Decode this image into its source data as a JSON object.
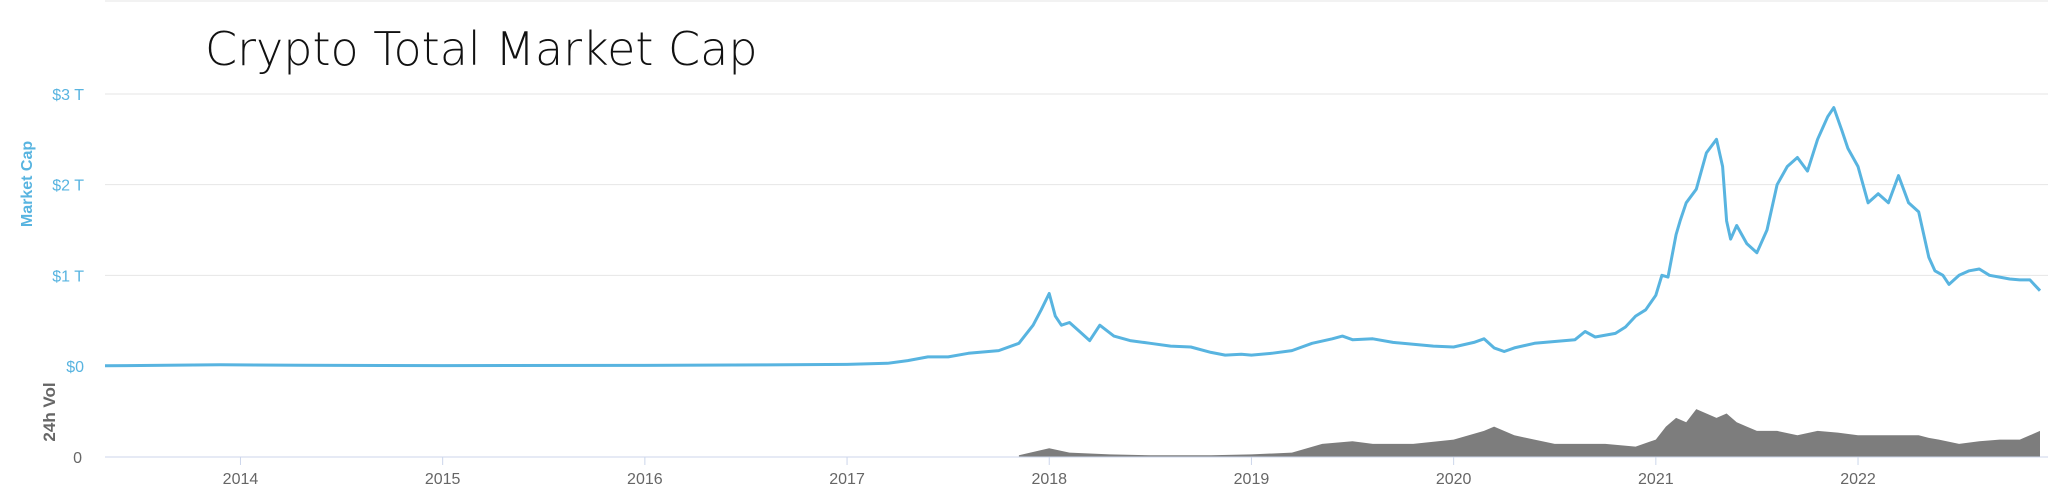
{
  "chart_data": {
    "type": "line",
    "title": "Crypto Total Market Cap",
    "ylabel": "Market Cap",
    "y2label": "24h Vol",
    "ylim": [
      0,
      3
    ],
    "y_unit": "T USD",
    "y_ticks": [
      {
        "value": 0,
        "label": "$0"
      },
      {
        "value": 1,
        "label": "$1 T"
      },
      {
        "value": 2,
        "label": "$2 T"
      },
      {
        "value": 3,
        "label": "$3 T"
      }
    ],
    "vol_ticks": [
      {
        "value": 0,
        "label": "0"
      }
    ],
    "xlim": [
      2013.33,
      2022.9
    ],
    "x_ticks": [
      {
        "value": 2014,
        "label": "2014"
      },
      {
        "value": 2015,
        "label": "2015"
      },
      {
        "value": 2016,
        "label": "2016"
      },
      {
        "value": 2017,
        "label": "2017"
      },
      {
        "value": 2018,
        "label": "2018"
      },
      {
        "value": 2019,
        "label": "2019"
      },
      {
        "value": 2020,
        "label": "2020"
      },
      {
        "value": 2021,
        "label": "2021"
      },
      {
        "value": 2022,
        "label": "2022"
      }
    ],
    "grid": true,
    "legend": "none",
    "series": [
      {
        "color": "#58b4e0",
        "x": [
          2013.33,
          2013.9,
          2014.3,
          2015.0,
          2016.0,
          2016.6,
          2017.0,
          2017.2,
          2017.3,
          2017.4,
          2017.5,
          2017.6,
          2017.65,
          2017.75,
          2017.85,
          2017.92,
          2017.96,
          2018.0,
          2018.03,
          2018.06,
          2018.1,
          2018.15,
          2018.2,
          2018.25,
          2018.32,
          2018.4,
          2018.5,
          2018.6,
          2018.7,
          2018.8,
          2018.87,
          2018.95,
          2019.0,
          2019.1,
          2019.2,
          2019.3,
          2019.4,
          2019.45,
          2019.5,
          2019.6,
          2019.7,
          2019.8,
          2019.9,
          2020.0,
          2020.1,
          2020.15,
          2020.2,
          2020.25,
          2020.3,
          2020.4,
          2020.5,
          2020.6,
          2020.65,
          2020.7,
          2020.8,
          2020.85,
          2020.9,
          2020.95,
          2021.0,
          2021.03,
          2021.06,
          2021.1,
          2021.12,
          2021.15,
          2021.2,
          2021.25,
          2021.3,
          2021.33,
          2021.35,
          2021.37,
          2021.4,
          2021.45,
          2021.5,
          2021.55,
          2021.6,
          2021.65,
          2021.7,
          2021.75,
          2021.8,
          2021.85,
          2021.88,
          2021.92,
          2021.95,
          2022.0,
          2022.05,
          2022.1,
          2022.15,
          2022.2,
          2022.25,
          2022.3,
          2022.35,
          2022.38,
          2022.42,
          2022.45,
          2022.5,
          2022.55,
          2022.6,
          2022.65,
          2022.7,
          2022.75,
          2022.8,
          2022.85,
          2022.9
        ],
        "y": [
          0.002,
          0.013,
          0.008,
          0.004,
          0.007,
          0.012,
          0.018,
          0.03,
          0.06,
          0.1,
          0.1,
          0.14,
          0.15,
          0.17,
          0.25,
          0.45,
          0.62,
          0.8,
          0.55,
          0.45,
          0.48,
          0.38,
          0.28,
          0.45,
          0.33,
          0.28,
          0.25,
          0.22,
          0.21,
          0.15,
          0.12,
          0.13,
          0.12,
          0.14,
          0.17,
          0.25,
          0.3,
          0.33,
          0.29,
          0.3,
          0.26,
          0.24,
          0.22,
          0.21,
          0.26,
          0.3,
          0.2,
          0.16,
          0.2,
          0.25,
          0.27,
          0.29,
          0.38,
          0.32,
          0.36,
          0.43,
          0.55,
          0.62,
          0.78,
          1.0,
          0.98,
          1.45,
          1.6,
          1.8,
          1.95,
          2.35,
          2.5,
          2.2,
          1.6,
          1.4,
          1.55,
          1.35,
          1.25,
          1.5,
          2.0,
          2.2,
          2.3,
          2.15,
          2.5,
          2.75,
          2.85,
          2.6,
          2.4,
          2.2,
          1.8,
          1.9,
          1.8,
          2.1,
          1.8,
          1.7,
          1.2,
          1.05,
          1.0,
          0.9,
          1.0,
          1.05,
          1.07,
          1.0,
          0.98,
          0.96,
          0.95,
          0.95,
          0.83
        ]
      }
    ],
    "volume": {
      "color": "#7d7d7d",
      "x": [
        2017.85,
        2018.0,
        2018.1,
        2018.3,
        2018.5,
        2018.8,
        2019.0,
        2019.2,
        2019.35,
        2019.5,
        2019.6,
        2019.8,
        2020.0,
        2020.15,
        2020.2,
        2020.3,
        2020.4,
        2020.5,
        2020.6,
        2020.75,
        2020.9,
        2021.0,
        2021.05,
        2021.1,
        2021.15,
        2021.2,
        2021.3,
        2021.35,
        2021.4,
        2021.45,
        2021.5,
        2021.6,
        2021.7,
        2021.8,
        2021.9,
        2022.0,
        2022.1,
        2022.2,
        2022.3,
        2022.35,
        2022.4,
        2022.5,
        2022.6,
        2022.7,
        2022.8,
        2022.85,
        2022.9
      ],
      "y": [
        0.02,
        0.1,
        0.05,
        0.03,
        0.02,
        0.02,
        0.03,
        0.05,
        0.15,
        0.18,
        0.15,
        0.15,
        0.2,
        0.3,
        0.35,
        0.25,
        0.2,
        0.15,
        0.15,
        0.15,
        0.12,
        0.2,
        0.35,
        0.45,
        0.4,
        0.55,
        0.45,
        0.5,
        0.4,
        0.35,
        0.3,
        0.3,
        0.25,
        0.3,
        0.28,
        0.25,
        0.25,
        0.25,
        0.25,
        0.22,
        0.2,
        0.15,
        0.18,
        0.2,
        0.2,
        0.25,
        0.3
      ]
    }
  }
}
